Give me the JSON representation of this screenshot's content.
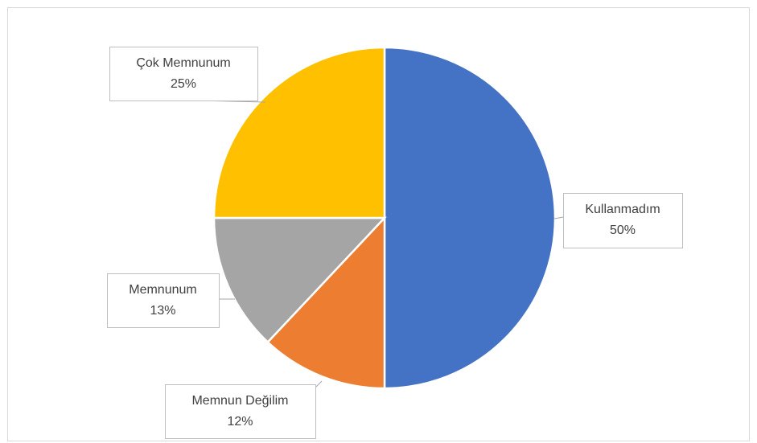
{
  "chart_data": {
    "type": "pie",
    "categories": [
      "Kullanmadım",
      "Memnun Değilim",
      "Memnunum",
      "Çok Memnunum"
    ],
    "values": [
      50,
      12,
      13,
      25
    ],
    "value_labels": [
      "50%",
      "12%",
      "13%",
      "25%"
    ],
    "colors": [
      "#4472c4",
      "#ed7d31",
      "#a5a5a5",
      "#ffc000"
    ]
  }
}
